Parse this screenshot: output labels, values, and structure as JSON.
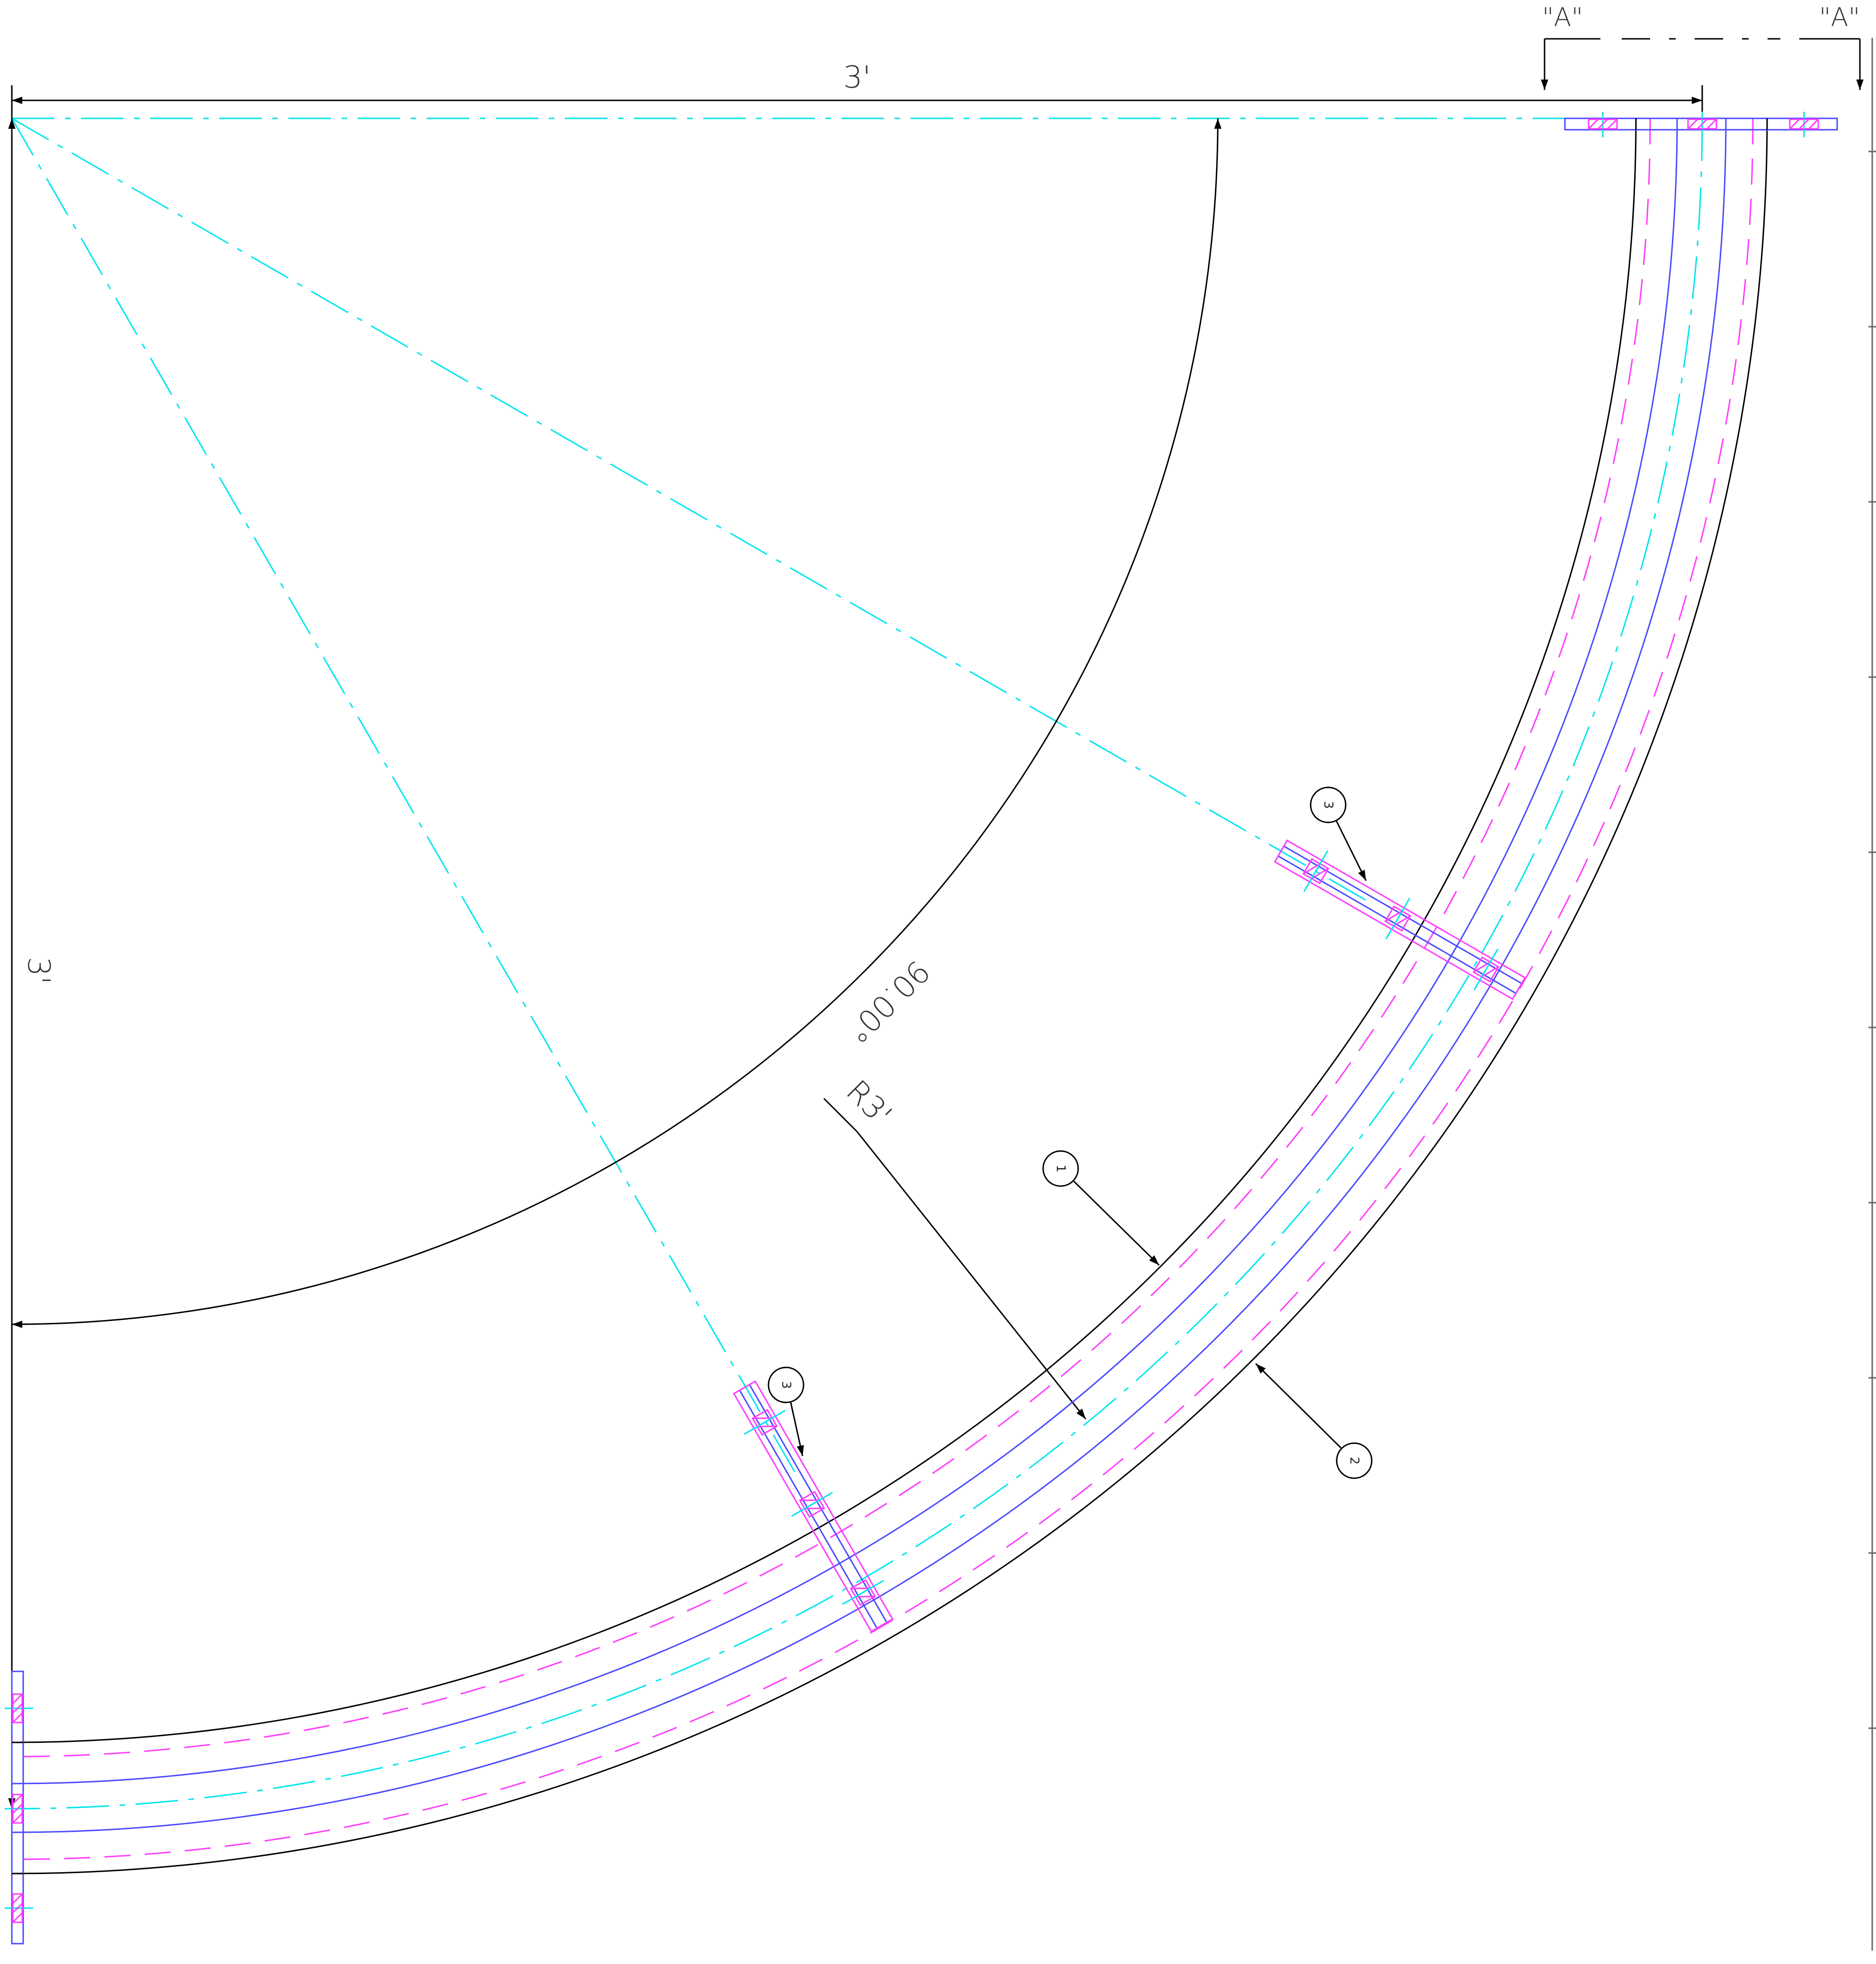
{
  "section_marks": {
    "left": "\"A\"",
    "right": "\"A\""
  },
  "dimensions": {
    "horizontal": "3'",
    "vertical": "3'",
    "angle": "90.00°",
    "radius": "R3'"
  },
  "balloons": {
    "part_1": "1",
    "part_2": "2",
    "part_3_upper": "3",
    "part_3_lower": "3"
  },
  "colors": {
    "outline": "#000000",
    "centerline": "#00e5ee",
    "liner": "#4a4aff",
    "hidden": "#ff3cff",
    "background": "#ffffff"
  }
}
